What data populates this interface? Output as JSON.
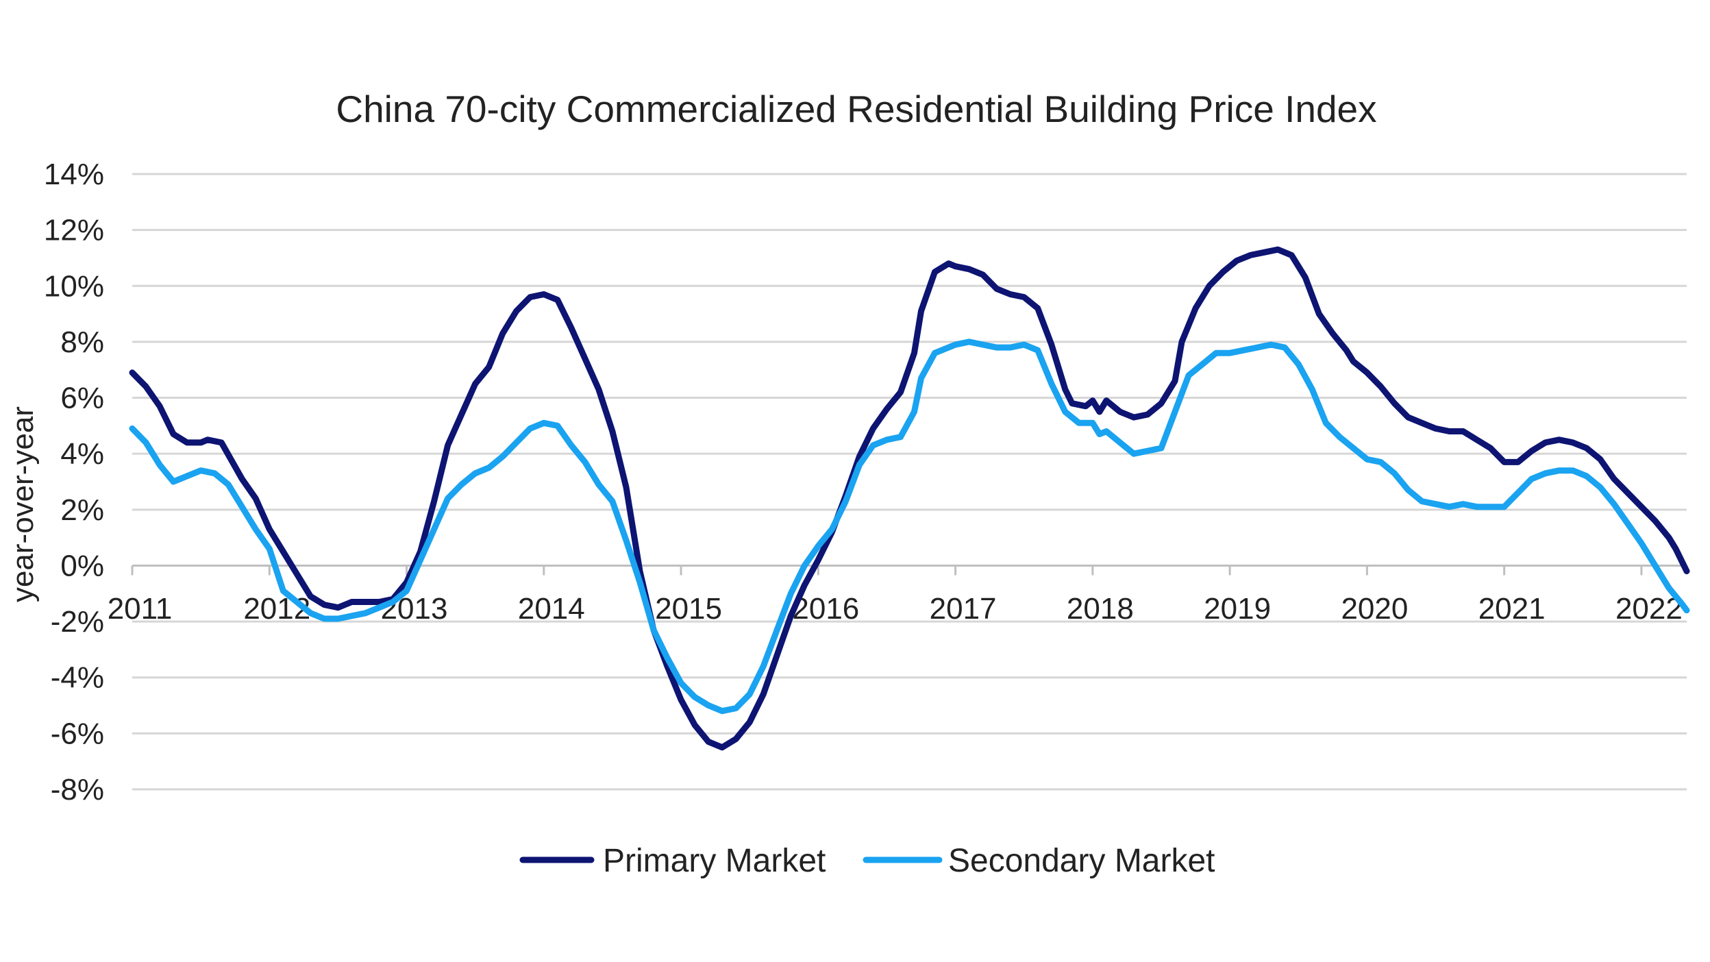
{
  "chart_data": {
    "type": "line",
    "title": "China 70-city Commercialized Residential Building Price Index",
    "ylabel": "year-over-year",
    "xlabel": "",
    "xlim": [
      2011.0,
      2022.33
    ],
    "ylim": [
      -8,
      14
    ],
    "yticks": [
      14,
      12,
      10,
      8,
      6,
      4,
      2,
      0,
      -2,
      -4,
      -6,
      -8
    ],
    "ytick_labels": [
      "14%",
      "12%",
      "10%",
      "8%",
      "6%",
      "4%",
      "2%",
      "0%",
      "-2%",
      "-4%",
      "-6%",
      "-8%"
    ],
    "xticks": [
      2011,
      2012,
      2013,
      2014,
      2015,
      2016,
      2017,
      2018,
      2019,
      2020,
      2021,
      2022
    ],
    "xtick_labels": [
      "2011",
      "2012",
      "2013",
      "2014",
      "2015",
      "2016",
      "2017",
      "2018",
      "2019",
      "2020",
      "2021",
      "2022"
    ],
    "grid": true,
    "legend_position": "bottom-center",
    "series": [
      {
        "name": "Primary Market",
        "color": "#0d1472",
        "points": [
          [
            2011.0,
            6.9
          ],
          [
            2011.1,
            6.4
          ],
          [
            2011.2,
            5.7
          ],
          [
            2011.3,
            4.7
          ],
          [
            2011.4,
            4.4
          ],
          [
            2011.5,
            4.4
          ],
          [
            2011.55,
            4.5
          ],
          [
            2011.65,
            4.4
          ],
          [
            2011.8,
            3.1
          ],
          [
            2011.9,
            2.4
          ],
          [
            2012.0,
            1.3
          ],
          [
            2012.1,
            0.5
          ],
          [
            2012.2,
            -0.3
          ],
          [
            2012.3,
            -1.1
          ],
          [
            2012.4,
            -1.4
          ],
          [
            2012.5,
            -1.5
          ],
          [
            2012.6,
            -1.3
          ],
          [
            2012.7,
            -1.3
          ],
          [
            2012.8,
            -1.3
          ],
          [
            2012.9,
            -1.2
          ],
          [
            2013.0,
            -0.6
          ],
          [
            2013.1,
            0.5
          ],
          [
            2013.2,
            2.3
          ],
          [
            2013.3,
            4.3
          ],
          [
            2013.4,
            5.4
          ],
          [
            2013.5,
            6.5
          ],
          [
            2013.6,
            7.1
          ],
          [
            2013.7,
            8.3
          ],
          [
            2013.8,
            9.1
          ],
          [
            2013.9,
            9.6
          ],
          [
            2014.0,
            9.7
          ],
          [
            2014.1,
            9.5
          ],
          [
            2014.2,
            8.5
          ],
          [
            2014.3,
            7.4
          ],
          [
            2014.4,
            6.3
          ],
          [
            2014.5,
            4.8
          ],
          [
            2014.6,
            2.8
          ],
          [
            2014.7,
            -0.2
          ],
          [
            2014.8,
            -2.3
          ],
          [
            2014.9,
            -3.6
          ],
          [
            2015.0,
            -4.8
          ],
          [
            2015.1,
            -5.7
          ],
          [
            2015.2,
            -6.3
          ],
          [
            2015.3,
            -6.5
          ],
          [
            2015.4,
            -6.2
          ],
          [
            2015.5,
            -5.6
          ],
          [
            2015.6,
            -4.6
          ],
          [
            2015.7,
            -3.2
          ],
          [
            2015.8,
            -1.8
          ],
          [
            2015.9,
            -0.7
          ],
          [
            2016.0,
            0.2
          ],
          [
            2016.1,
            1.2
          ],
          [
            2016.2,
            2.5
          ],
          [
            2016.3,
            3.9
          ],
          [
            2016.4,
            4.9
          ],
          [
            2016.5,
            5.6
          ],
          [
            2016.6,
            6.2
          ],
          [
            2016.7,
            7.6
          ],
          [
            2016.75,
            9.1
          ],
          [
            2016.85,
            10.5
          ],
          [
            2016.95,
            10.8
          ],
          [
            2017.0,
            10.7
          ],
          [
            2017.1,
            10.6
          ],
          [
            2017.2,
            10.4
          ],
          [
            2017.3,
            9.9
          ],
          [
            2017.4,
            9.7
          ],
          [
            2017.5,
            9.6
          ],
          [
            2017.6,
            9.2
          ],
          [
            2017.7,
            7.9
          ],
          [
            2017.8,
            6.3
          ],
          [
            2017.85,
            5.8
          ],
          [
            2017.95,
            5.7
          ],
          [
            2018.0,
            5.9
          ],
          [
            2018.05,
            5.5
          ],
          [
            2018.1,
            5.9
          ],
          [
            2018.2,
            5.5
          ],
          [
            2018.3,
            5.3
          ],
          [
            2018.4,
            5.4
          ],
          [
            2018.5,
            5.8
          ],
          [
            2018.6,
            6.6
          ],
          [
            2018.65,
            8.0
          ],
          [
            2018.75,
            9.2
          ],
          [
            2018.85,
            10.0
          ],
          [
            2018.95,
            10.5
          ],
          [
            2019.05,
            10.9
          ],
          [
            2019.15,
            11.1
          ],
          [
            2019.25,
            11.2
          ],
          [
            2019.35,
            11.3
          ],
          [
            2019.45,
            11.1
          ],
          [
            2019.55,
            10.3
          ],
          [
            2019.65,
            9.0
          ],
          [
            2019.75,
            8.3
          ],
          [
            2019.85,
            7.7
          ],
          [
            2019.9,
            7.3
          ],
          [
            2020.0,
            6.9
          ],
          [
            2020.1,
            6.4
          ],
          [
            2020.2,
            5.8
          ],
          [
            2020.3,
            5.3
          ],
          [
            2020.4,
            5.1
          ],
          [
            2020.5,
            4.9
          ],
          [
            2020.6,
            4.8
          ],
          [
            2020.7,
            4.8
          ],
          [
            2020.8,
            4.5
          ],
          [
            2020.9,
            4.2
          ],
          [
            2021.0,
            3.7
          ],
          [
            2021.1,
            3.7
          ],
          [
            2021.2,
            4.1
          ],
          [
            2021.3,
            4.4
          ],
          [
            2021.4,
            4.5
          ],
          [
            2021.5,
            4.4
          ],
          [
            2021.6,
            4.2
          ],
          [
            2021.7,
            3.8
          ],
          [
            2021.8,
            3.1
          ],
          [
            2021.9,
            2.6
          ],
          [
            2022.0,
            2.1
          ],
          [
            2022.1,
            1.6
          ],
          [
            2022.2,
            1.0
          ],
          [
            2022.25,
            0.6
          ],
          [
            2022.3,
            0.1
          ],
          [
            2022.33,
            -0.2
          ]
        ]
      },
      {
        "name": "Secondary Market",
        "color": "#1aa3f0",
        "points": [
          [
            2011.0,
            4.9
          ],
          [
            2011.1,
            4.4
          ],
          [
            2011.2,
            3.6
          ],
          [
            2011.3,
            3.0
          ],
          [
            2011.4,
            3.2
          ],
          [
            2011.5,
            3.4
          ],
          [
            2011.6,
            3.3
          ],
          [
            2011.7,
            2.9
          ],
          [
            2011.8,
            2.1
          ],
          [
            2011.9,
            1.3
          ],
          [
            2012.0,
            0.6
          ],
          [
            2012.1,
            -0.9
          ],
          [
            2012.2,
            -1.3
          ],
          [
            2012.3,
            -1.7
          ],
          [
            2012.4,
            -1.9
          ],
          [
            2012.5,
            -1.9
          ],
          [
            2012.6,
            -1.8
          ],
          [
            2012.7,
            -1.7
          ],
          [
            2012.8,
            -1.5
          ],
          [
            2012.9,
            -1.3
          ],
          [
            2013.0,
            -0.9
          ],
          [
            2013.1,
            0.2
          ],
          [
            2013.2,
            1.3
          ],
          [
            2013.3,
            2.4
          ],
          [
            2013.4,
            2.9
          ],
          [
            2013.5,
            3.3
          ],
          [
            2013.6,
            3.5
          ],
          [
            2013.7,
            3.9
          ],
          [
            2013.8,
            4.4
          ],
          [
            2013.9,
            4.9
          ],
          [
            2014.0,
            5.1
          ],
          [
            2014.1,
            5.0
          ],
          [
            2014.2,
            4.3
          ],
          [
            2014.3,
            3.7
          ],
          [
            2014.4,
            2.9
          ],
          [
            2014.5,
            2.3
          ],
          [
            2014.6,
            0.9
          ],
          [
            2014.7,
            -0.6
          ],
          [
            2014.8,
            -2.3
          ],
          [
            2014.9,
            -3.3
          ],
          [
            2015.0,
            -4.2
          ],
          [
            2015.1,
            -4.7
          ],
          [
            2015.2,
            -5.0
          ],
          [
            2015.3,
            -5.2
          ],
          [
            2015.4,
            -5.1
          ],
          [
            2015.5,
            -4.6
          ],
          [
            2015.6,
            -3.6
          ],
          [
            2015.7,
            -2.3
          ],
          [
            2015.8,
            -1.0
          ],
          [
            2015.9,
            0.0
          ],
          [
            2016.0,
            0.7
          ],
          [
            2016.1,
            1.3
          ],
          [
            2016.2,
            2.3
          ],
          [
            2016.3,
            3.6
          ],
          [
            2016.4,
            4.3
          ],
          [
            2016.5,
            4.5
          ],
          [
            2016.6,
            4.6
          ],
          [
            2016.7,
            5.5
          ],
          [
            2016.75,
            6.7
          ],
          [
            2016.85,
            7.6
          ],
          [
            2016.95,
            7.8
          ],
          [
            2017.0,
            7.9
          ],
          [
            2017.1,
            8.0
          ],
          [
            2017.2,
            7.9
          ],
          [
            2017.3,
            7.8
          ],
          [
            2017.4,
            7.8
          ],
          [
            2017.5,
            7.9
          ],
          [
            2017.6,
            7.7
          ],
          [
            2017.7,
            6.5
          ],
          [
            2017.8,
            5.5
          ],
          [
            2017.9,
            5.1
          ],
          [
            2018.0,
            5.1
          ],
          [
            2018.05,
            4.7
          ],
          [
            2018.1,
            4.8
          ],
          [
            2018.2,
            4.4
          ],
          [
            2018.3,
            4.0
          ],
          [
            2018.4,
            4.1
          ],
          [
            2018.5,
            4.2
          ],
          [
            2018.6,
            5.5
          ],
          [
            2018.7,
            6.8
          ],
          [
            2018.8,
            7.2
          ],
          [
            2018.9,
            7.6
          ],
          [
            2019.0,
            7.6
          ],
          [
            2019.1,
            7.7
          ],
          [
            2019.2,
            7.8
          ],
          [
            2019.3,
            7.9
          ],
          [
            2019.4,
            7.8
          ],
          [
            2019.5,
            7.2
          ],
          [
            2019.6,
            6.3
          ],
          [
            2019.7,
            5.1
          ],
          [
            2019.8,
            4.6
          ],
          [
            2019.9,
            4.2
          ],
          [
            2020.0,
            3.8
          ],
          [
            2020.1,
            3.7
          ],
          [
            2020.2,
            3.3
          ],
          [
            2020.3,
            2.7
          ],
          [
            2020.4,
            2.3
          ],
          [
            2020.5,
            2.2
          ],
          [
            2020.6,
            2.1
          ],
          [
            2020.7,
            2.2
          ],
          [
            2020.8,
            2.1
          ],
          [
            2020.9,
            2.1
          ],
          [
            2021.0,
            2.1
          ],
          [
            2021.1,
            2.6
          ],
          [
            2021.2,
            3.1
          ],
          [
            2021.3,
            3.3
          ],
          [
            2021.4,
            3.4
          ],
          [
            2021.5,
            3.4
          ],
          [
            2021.6,
            3.2
          ],
          [
            2021.7,
            2.8
          ],
          [
            2021.8,
            2.2
          ],
          [
            2021.9,
            1.5
          ],
          [
            2022.0,
            0.8
          ],
          [
            2022.1,
            0.0
          ],
          [
            2022.2,
            -0.8
          ],
          [
            2022.3,
            -1.4
          ],
          [
            2022.33,
            -1.6
          ]
        ]
      }
    ]
  }
}
